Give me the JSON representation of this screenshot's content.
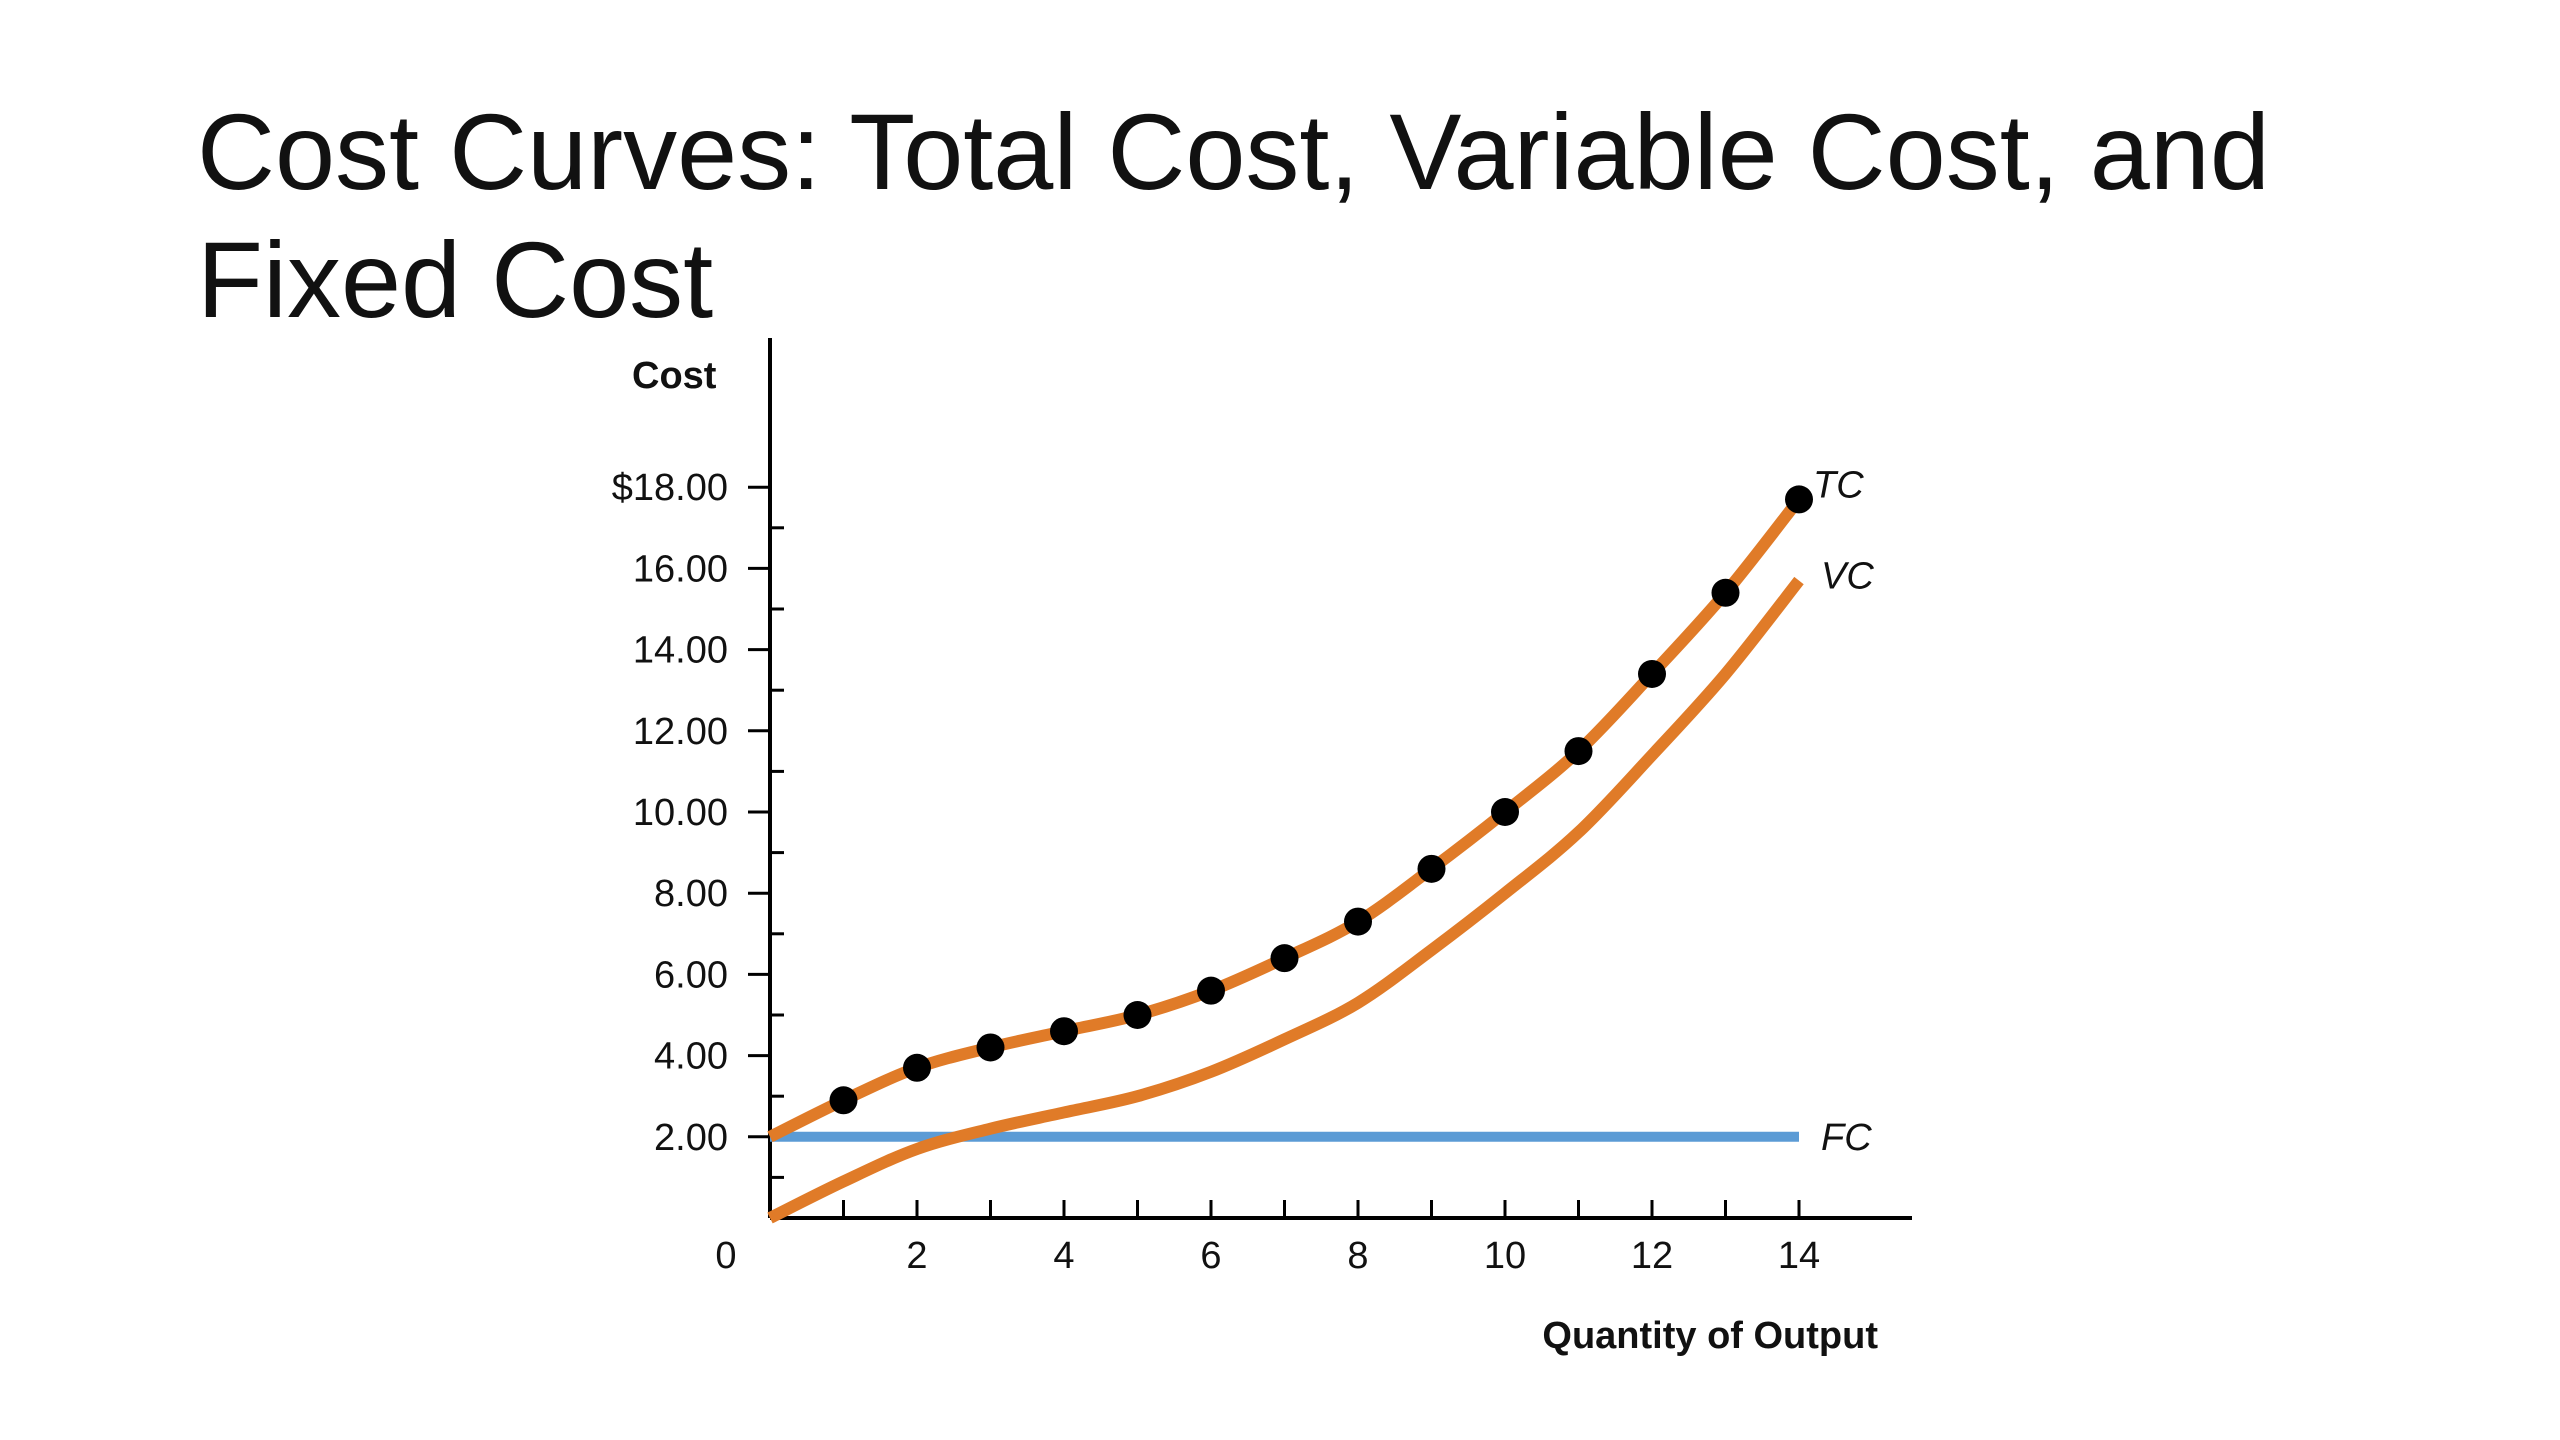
{
  "slide": {
    "title": "Cost Curves: Total Cost, Variable Cost, and Fixed Cost"
  },
  "chart_data": {
    "type": "line",
    "xlabel": "Quantity of Output",
    "ylabel": "Cost",
    "xlim": [
      0,
      15.5
    ],
    "ylim": [
      0,
      18
    ],
    "x_ticks": [
      0,
      2,
      4,
      6,
      8,
      10,
      12,
      14
    ],
    "x_tick_labels": [
      "0",
      "2",
      "4",
      "6",
      "8",
      "10",
      "12",
      "14"
    ],
    "x_minor_ticks": [
      1,
      3,
      5,
      7,
      9,
      11,
      13
    ],
    "y_ticks": [
      2,
      4,
      6,
      8,
      10,
      12,
      14,
      16,
      18
    ],
    "y_tick_labels": [
      "2.00",
      "4.00",
      "6.00",
      "8.00",
      "10.00",
      "12.00",
      "14.00",
      "16.00",
      "$18.00"
    ],
    "y_minor_ticks": [
      1,
      3,
      5,
      7,
      9,
      11,
      13,
      15,
      17
    ],
    "grid": false,
    "series": [
      {
        "name": "TC",
        "color": "#E07B28",
        "markers": true,
        "marker_color": "#000000",
        "x": [
          0,
          1,
          2,
          3,
          4,
          5,
          6,
          7,
          8,
          9,
          10,
          11,
          12,
          13,
          14
        ],
        "y": [
          2.0,
          2.9,
          3.7,
          4.2,
          4.6,
          5.0,
          5.6,
          6.4,
          7.3,
          8.6,
          10.0,
          11.5,
          13.4,
          15.4,
          17.7
        ],
        "marker_x": [
          1,
          2,
          3,
          4,
          5,
          6,
          7,
          8,
          9,
          10,
          11,
          12,
          13,
          14
        ]
      },
      {
        "name": "VC",
        "color": "#E07B28",
        "markers": false,
        "x": [
          0,
          1,
          2,
          3,
          4,
          5,
          6,
          7,
          8,
          9,
          10,
          11,
          12,
          13,
          14
        ],
        "y": [
          0.0,
          0.9,
          1.7,
          2.2,
          2.6,
          3.0,
          3.6,
          4.4,
          5.3,
          6.6,
          8.0,
          9.5,
          11.4,
          13.4,
          15.7
        ]
      },
      {
        "name": "FC",
        "color": "#5B9BD5",
        "markers": false,
        "x": [
          0,
          14
        ],
        "y": [
          2.0,
          2.0
        ]
      }
    ]
  }
}
